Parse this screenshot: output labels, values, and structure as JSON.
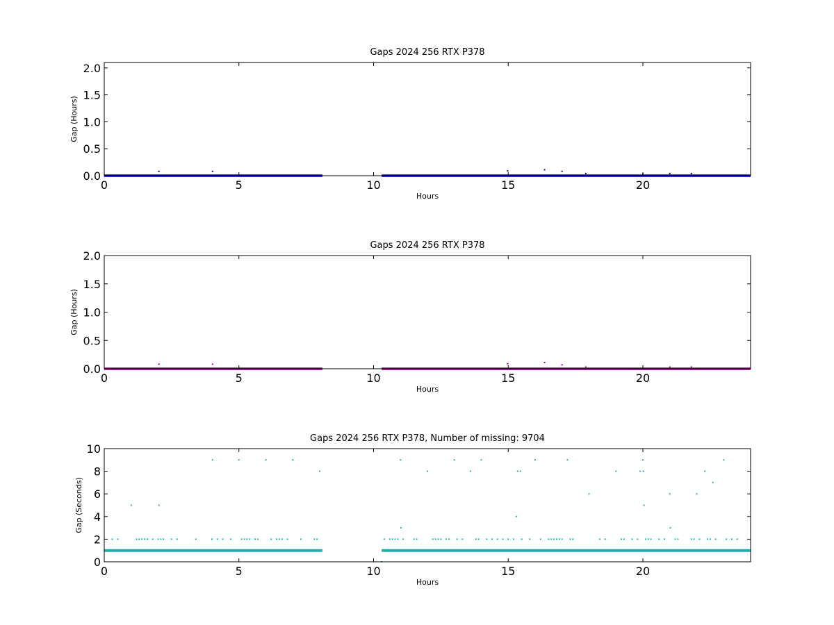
{
  "chart_data": [
    {
      "type": "scatter",
      "title": "Gaps 2024 256 RTX  P378",
      "xlabel": "Hours",
      "ylabel": "Gap (Hours)",
      "xlim": [
        0,
        24
      ],
      "ylim": [
        0,
        2.1
      ],
      "xticks": [
        "0",
        "5",
        "10",
        "20",
        "15"
      ],
      "xtick_values": [
        0,
        5,
        10,
        20,
        15
      ],
      "yticks": [
        "0.0",
        "0.5",
        "1.0",
        "1.5",
        "2.0"
      ],
      "ytick_values": [
        0,
        0.5,
        1.0,
        1.5,
        2.0
      ],
      "grid": false,
      "color": "#0000cc",
      "baseline_segments": [
        [
          0,
          8.1
        ],
        [
          10.3,
          24
        ]
      ],
      "baseline_value": 0.0003,
      "points": [
        {
          "x": 2.03,
          "y": 0.08
        },
        {
          "x": 4.02,
          "y": 0.08
        },
        {
          "x": 14.98,
          "y": 0.09
        },
        {
          "x": 16.35,
          "y": 0.11
        },
        {
          "x": 17.0,
          "y": 0.08
        },
        {
          "x": 17.88,
          "y": 0.04
        },
        {
          "x": 20.0,
          "y": 0.03
        },
        {
          "x": 21.0,
          "y": 0.04
        },
        {
          "x": 21.8,
          "y": 0.04
        }
      ]
    },
    {
      "type": "scatter",
      "title": "Gaps 2024 256 RTX  P378",
      "xlabel": "Hours",
      "ylabel": "Gap (Hours)",
      "xlim": [
        0,
        24
      ],
      "ylim": [
        0,
        2.0
      ],
      "xticks": [
        "0",
        "5",
        "10",
        "20",
        "15"
      ],
      "xtick_values": [
        0,
        5,
        10,
        20,
        15
      ],
      "yticks": [
        "0.0",
        "0.5",
        "1.0",
        "1.5",
        "2.0"
      ],
      "ytick_values": [
        0,
        0.5,
        1.0,
        1.5,
        2.0
      ],
      "grid": false,
      "color": "#990099",
      "baseline_segments": [
        [
          0,
          8.1
        ],
        [
          10.3,
          24
        ]
      ],
      "baseline_value": 0.0003,
      "points": [
        {
          "x": 2.03,
          "y": 0.08
        },
        {
          "x": 4.02,
          "y": 0.08
        },
        {
          "x": 14.98,
          "y": 0.09
        },
        {
          "x": 16.35,
          "y": 0.11
        },
        {
          "x": 17.0,
          "y": 0.07
        },
        {
          "x": 17.88,
          "y": 0.03
        },
        {
          "x": 21.0,
          "y": 0.03
        },
        {
          "x": 21.8,
          "y": 0.03
        }
      ]
    },
    {
      "type": "scatter",
      "title": "Gaps 2024 256 RTX  P378, Number of missing: 9704",
      "xlabel": "Hours",
      "ylabel": "Gap (Seconds)",
      "xlim": [
        0,
        24
      ],
      "ylim": [
        0,
        10
      ],
      "xticks": [
        "0",
        "5",
        "10",
        "20",
        "15"
      ],
      "xtick_values": [
        0,
        5,
        10,
        20,
        15
      ],
      "yticks": [
        "0",
        "2",
        "4",
        "6",
        "8",
        "10"
      ],
      "ytick_values": [
        0,
        2,
        4,
        6,
        8,
        10
      ],
      "grid": false,
      "color": "#20b2aa",
      "baseline_segments": [
        [
          0,
          8.1
        ],
        [
          10.3,
          24
        ]
      ],
      "baseline_value": 1,
      "points": [
        {
          "x": 0.3,
          "y": 2
        },
        {
          "x": 0.5,
          "y": 2
        },
        {
          "x": 1.0,
          "y": 5
        },
        {
          "x": 1.2,
          "y": 2
        },
        {
          "x": 1.3,
          "y": 2
        },
        {
          "x": 1.4,
          "y": 2
        },
        {
          "x": 1.5,
          "y": 2
        },
        {
          "x": 1.6,
          "y": 2
        },
        {
          "x": 1.8,
          "y": 2
        },
        {
          "x": 2.0,
          "y": 2
        },
        {
          "x": 2.03,
          "y": 5
        },
        {
          "x": 2.1,
          "y": 2
        },
        {
          "x": 2.2,
          "y": 2
        },
        {
          "x": 2.5,
          "y": 2
        },
        {
          "x": 2.7,
          "y": 2
        },
        {
          "x": 3.4,
          "y": 2
        },
        {
          "x": 4.0,
          "y": 2
        },
        {
          "x": 4.02,
          "y": 9
        },
        {
          "x": 4.2,
          "y": 2
        },
        {
          "x": 4.4,
          "y": 2
        },
        {
          "x": 4.7,
          "y": 2
        },
        {
          "x": 5.0,
          "y": 9
        },
        {
          "x": 5.1,
          "y": 2
        },
        {
          "x": 5.2,
          "y": 2
        },
        {
          "x": 5.3,
          "y": 2
        },
        {
          "x": 5.4,
          "y": 2
        },
        {
          "x": 5.6,
          "y": 2
        },
        {
          "x": 5.7,
          "y": 2
        },
        {
          "x": 6.0,
          "y": 9
        },
        {
          "x": 6.2,
          "y": 2
        },
        {
          "x": 6.4,
          "y": 2
        },
        {
          "x": 6.5,
          "y": 2
        },
        {
          "x": 6.6,
          "y": 2
        },
        {
          "x": 6.8,
          "y": 2
        },
        {
          "x": 7.0,
          "y": 9
        },
        {
          "x": 7.3,
          "y": 2
        },
        {
          "x": 7.8,
          "y": 2
        },
        {
          "x": 7.9,
          "y": 2
        },
        {
          "x": 8.0,
          "y": 8
        },
        {
          "x": 10.3,
          "y": 0
        },
        {
          "x": 10.4,
          "y": 2
        },
        {
          "x": 10.6,
          "y": 2
        },
        {
          "x": 10.7,
          "y": 2
        },
        {
          "x": 10.8,
          "y": 2
        },
        {
          "x": 10.9,
          "y": 2
        },
        {
          "x": 11.0,
          "y": 9
        },
        {
          "x": 11.02,
          "y": 3
        },
        {
          "x": 11.1,
          "y": 2
        },
        {
          "x": 11.5,
          "y": 2
        },
        {
          "x": 11.6,
          "y": 2
        },
        {
          "x": 12.0,
          "y": 8
        },
        {
          "x": 12.2,
          "y": 2
        },
        {
          "x": 12.3,
          "y": 2
        },
        {
          "x": 12.4,
          "y": 2
        },
        {
          "x": 12.5,
          "y": 2
        },
        {
          "x": 12.7,
          "y": 2
        },
        {
          "x": 12.8,
          "y": 2
        },
        {
          "x": 13.0,
          "y": 9
        },
        {
          "x": 13.1,
          "y": 2
        },
        {
          "x": 13.3,
          "y": 2
        },
        {
          "x": 13.6,
          "y": 8
        },
        {
          "x": 13.8,
          "y": 2
        },
        {
          "x": 13.9,
          "y": 2
        },
        {
          "x": 14.0,
          "y": 9
        },
        {
          "x": 14.2,
          "y": 2
        },
        {
          "x": 14.4,
          "y": 2
        },
        {
          "x": 14.6,
          "y": 2
        },
        {
          "x": 14.8,
          "y": 2
        },
        {
          "x": 15.0,
          "y": 2
        },
        {
          "x": 15.2,
          "y": 2
        },
        {
          "x": 15.3,
          "y": 4
        },
        {
          "x": 15.35,
          "y": 8
        },
        {
          "x": 15.45,
          "y": 8
        },
        {
          "x": 15.5,
          "y": 2
        },
        {
          "x": 15.8,
          "y": 2
        },
        {
          "x": 16.0,
          "y": 9
        },
        {
          "x": 16.2,
          "y": 2
        },
        {
          "x": 16.5,
          "y": 2
        },
        {
          "x": 16.6,
          "y": 2
        },
        {
          "x": 16.7,
          "y": 2
        },
        {
          "x": 16.8,
          "y": 2
        },
        {
          "x": 16.9,
          "y": 2
        },
        {
          "x": 17.0,
          "y": 2
        },
        {
          "x": 17.2,
          "y": 9
        },
        {
          "x": 17.3,
          "y": 2
        },
        {
          "x": 17.4,
          "y": 2
        },
        {
          "x": 18.0,
          "y": 6
        },
        {
          "x": 18.4,
          "y": 2
        },
        {
          "x": 18.6,
          "y": 2
        },
        {
          "x": 19.0,
          "y": 8
        },
        {
          "x": 19.2,
          "y": 2
        },
        {
          "x": 19.3,
          "y": 2
        },
        {
          "x": 19.6,
          "y": 2
        },
        {
          "x": 19.8,
          "y": 2
        },
        {
          "x": 19.9,
          "y": 8
        },
        {
          "x": 20.0,
          "y": 9
        },
        {
          "x": 20.02,
          "y": 8
        },
        {
          "x": 20.04,
          "y": 5
        },
        {
          "x": 20.1,
          "y": 2
        },
        {
          "x": 20.2,
          "y": 2
        },
        {
          "x": 20.3,
          "y": 2
        },
        {
          "x": 20.6,
          "y": 2
        },
        {
          "x": 20.8,
          "y": 2
        },
        {
          "x": 21.0,
          "y": 6
        },
        {
          "x": 21.02,
          "y": 3
        },
        {
          "x": 21.2,
          "y": 2
        },
        {
          "x": 21.3,
          "y": 2
        },
        {
          "x": 21.8,
          "y": 2
        },
        {
          "x": 21.9,
          "y": 2
        },
        {
          "x": 22.0,
          "y": 6
        },
        {
          "x": 22.1,
          "y": 2
        },
        {
          "x": 22.3,
          "y": 8
        },
        {
          "x": 22.4,
          "y": 2
        },
        {
          "x": 22.5,
          "y": 2
        },
        {
          "x": 22.6,
          "y": 7
        },
        {
          "x": 22.7,
          "y": 2
        },
        {
          "x": 23.0,
          "y": 9
        },
        {
          "x": 23.1,
          "y": 2
        },
        {
          "x": 23.3,
          "y": 2
        },
        {
          "x": 23.5,
          "y": 2
        }
      ]
    }
  ]
}
